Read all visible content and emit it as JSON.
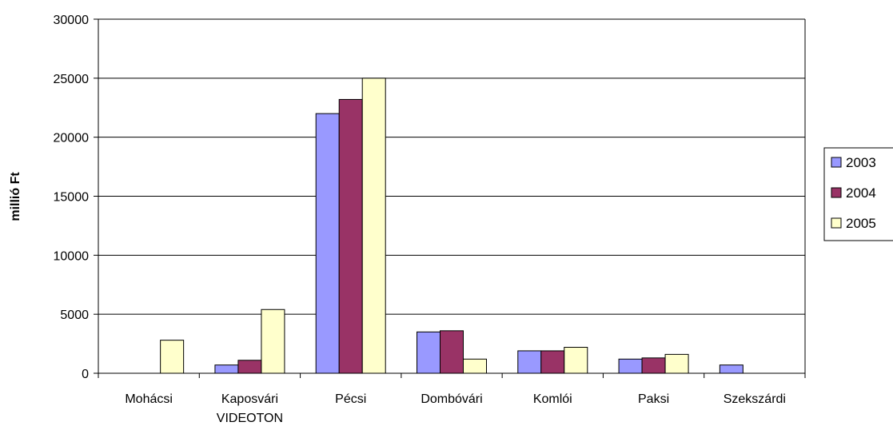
{
  "chart_data": {
    "type": "bar",
    "title": "",
    "xlabel": "",
    "ylabel": "millió Ft",
    "ylim": [
      0,
      30000
    ],
    "yticks": [
      0,
      5000,
      10000,
      15000,
      20000,
      25000,
      30000
    ],
    "grid": true,
    "legend_position": "right",
    "categories": [
      [
        "Mohácsi"
      ],
      [
        "Kaposvári",
        "VIDEOTON"
      ],
      [
        "Pécsi"
      ],
      [
        "Dombóvári"
      ],
      [
        "Komlói"
      ],
      [
        "Paksi"
      ],
      [
        "Szekszárdi"
      ]
    ],
    "series": [
      {
        "name": "2003",
        "color": "#9999ff",
        "values": [
          0,
          700,
          22000,
          3500,
          1900,
          1200,
          700
        ]
      },
      {
        "name": "2004",
        "color": "#993366",
        "values": [
          0,
          1100,
          23200,
          3600,
          1900,
          1300,
          0
        ]
      },
      {
        "name": "2005",
        "color": "#ffffcc",
        "values": [
          2800,
          5400,
          25000,
          1200,
          2200,
          1600,
          0
        ]
      }
    ]
  }
}
